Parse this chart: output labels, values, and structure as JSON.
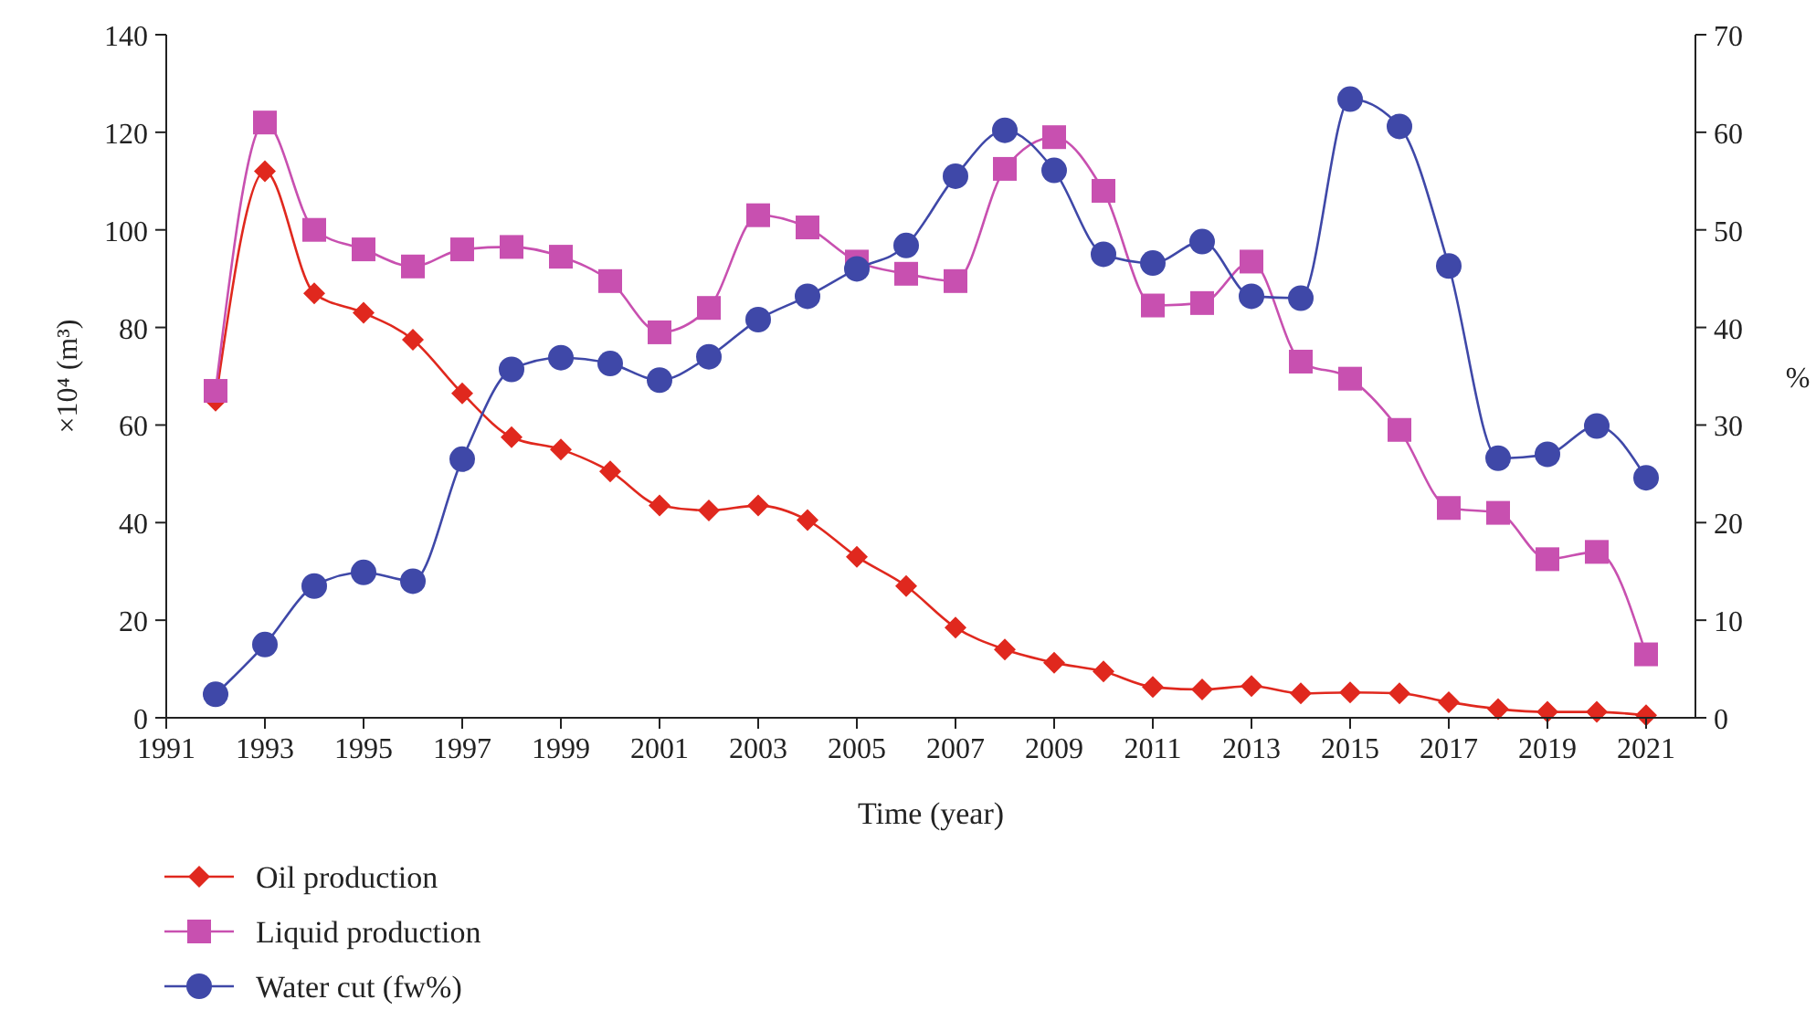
{
  "chart_data": {
    "type": "line",
    "xlabel": "Time (year)",
    "ylabel": "×10⁴ (m³)",
    "y2label": "%",
    "x": [
      1992,
      1993,
      1994,
      1995,
      1996,
      1997,
      1998,
      1999,
      2000,
      2001,
      2002,
      2003,
      2004,
      2005,
      2006,
      2007,
      2008,
      2009,
      2010,
      2011,
      2012,
      2013,
      2014,
      2015,
      2016,
      2017,
      2018,
      2019,
      2020,
      2021
    ],
    "xlim": [
      1991,
      2022
    ],
    "xticks": [
      1991,
      1993,
      1995,
      1997,
      1999,
      2001,
      2003,
      2005,
      2007,
      2009,
      2011,
      2013,
      2015,
      2017,
      2019,
      2021
    ],
    "ylim": [
      0,
      140
    ],
    "yticks": [
      0,
      20,
      40,
      60,
      80,
      100,
      120,
      140
    ],
    "y2lim": [
      0,
      70
    ],
    "y2ticks": [
      0,
      10,
      20,
      30,
      40,
      50,
      60,
      70
    ],
    "legend": "bottom left",
    "grid": false,
    "line_style": "solid",
    "series": [
      {
        "name": "Oil production",
        "color": "#e0281e",
        "marker": "diamond",
        "values": [
          65,
          112,
          87,
          83,
          77.5,
          66.5,
          57.5,
          55,
          50.5,
          43.5,
          42.5,
          43.5,
          40.5,
          33,
          27,
          18.5,
          14,
          11.3,
          9.5,
          6.3,
          5.8,
          6.5,
          5,
          5.2,
          5,
          3.2,
          1.8,
          1.2,
          1.2,
          0.5
        ]
      },
      {
        "name": "Liquid production",
        "color": "#c850b0",
        "marker": "square",
        "values": [
          67,
          122,
          100,
          96,
          92.5,
          96,
          96.5,
          94.5,
          89.5,
          79,
          84,
          103,
          100.5,
          93.5,
          91,
          89.5,
          112.5,
          119,
          108,
          84.5,
          85,
          93.5,
          73,
          69.5,
          59,
          43,
          42,
          32.5,
          34,
          13
        ]
      },
      {
        "name": "Water cut (fw%)",
        "color": "#3f48a8",
        "marker": "circle",
        "axis": "y2",
        "values": [
          2.4,
          7.5,
          13.5,
          14.9,
          14,
          26.5,
          35.7,
          36.9,
          36.3,
          34.6,
          37,
          40.8,
          43.2,
          46,
          48.4,
          55.5,
          60.2,
          56.1,
          47.5,
          46.6,
          48.8,
          43.2,
          43,
          63.4,
          60.6,
          46.3,
          26.6,
          27,
          29.9,
          24.6
        ]
      }
    ]
  }
}
